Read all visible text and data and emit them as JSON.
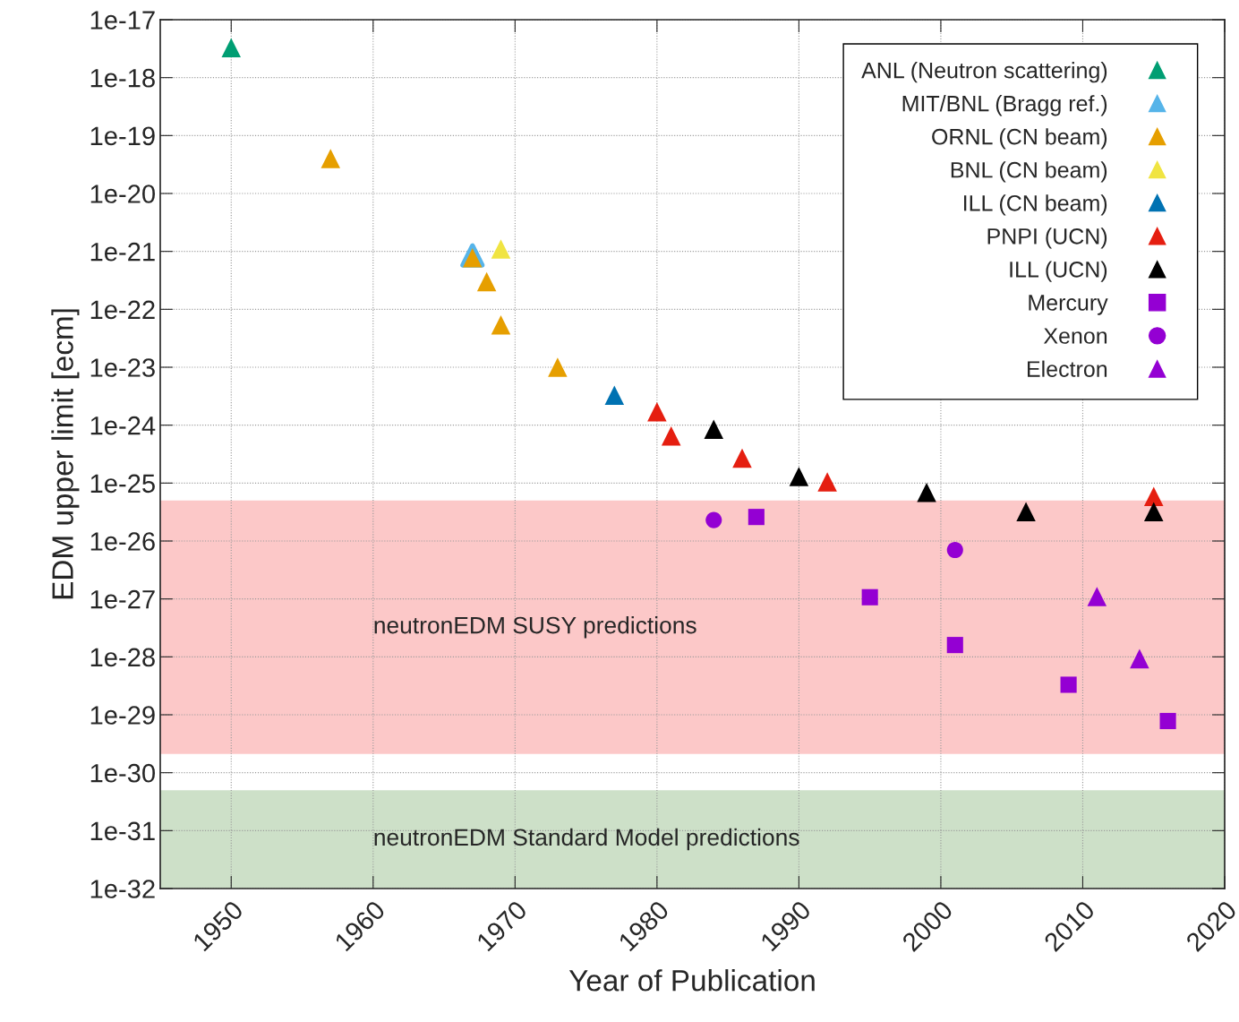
{
  "chart_data": {
    "type": "scatter",
    "xlabel": "Year of Publication",
    "ylabel": "EDM upper limit [ecm]",
    "log": "y",
    "grid": true,
    "legend": "top right",
    "xlim": [
      1945,
      2020
    ],
    "xticks": [
      1950,
      1960,
      1970,
      1980,
      1990,
      2000,
      2010,
      2020
    ],
    "ylim": [
      1e-32,
      1e-17
    ],
    "yticks": [
      {
        "value": 1e-32,
        "label": "1e-32"
      },
      {
        "value": 1e-31,
        "label": "1e-31"
      },
      {
        "value": 1e-30,
        "label": "1e-30"
      },
      {
        "value": 1e-29,
        "label": "1e-29"
      },
      {
        "value": 1e-28,
        "label": "1e-28"
      },
      {
        "value": 1e-27,
        "label": "1e-27"
      },
      {
        "value": 1e-26,
        "label": "1e-26"
      },
      {
        "value": 1e-25,
        "label": "1e-25"
      },
      {
        "value": 1e-24,
        "label": "1e-24"
      },
      {
        "value": 1e-23,
        "label": "1e-23"
      },
      {
        "value": 1e-22,
        "label": "1e-22"
      },
      {
        "value": 1e-21,
        "label": "1e-21"
      },
      {
        "value": 1e-20,
        "label": "1e-20"
      },
      {
        "value": 1e-19,
        "label": "1e-19"
      },
      {
        "value": 1e-18,
        "label": "1e-18"
      },
      {
        "value": 1e-17,
        "label": "1e-17"
      }
    ],
    "bands": [
      {
        "axis": "y",
        "from": 2.1e-30,
        "to": 5e-26,
        "label": "neutronEDM SUSY predictions",
        "color": "#fcc8c8"
      },
      {
        "axis": "y",
        "from": 1e-32,
        "to": 5e-31,
        "label": "neutronEDM Standard Model predictions",
        "color": "#cde0c8"
      }
    ],
    "series": [
      {
        "name": "ANL (Neutron scattering)",
        "color": "#009e73",
        "marker": "triangle",
        "x": [
          1950
        ],
        "values": [
          3.3e-18
        ]
      },
      {
        "name": "MIT/BNL (Bragg ref.)",
        "color": "#56b4e9",
        "marker": "triangle",
        "x": [
          1967
        ],
        "values": [
          8.5e-22
        ]
      },
      {
        "name": "ORNL (CN beam)",
        "color": "#e69f00",
        "marker": "triangle",
        "x": [
          1957,
          1967,
          1968,
          1969,
          1973
        ],
        "values": [
          4e-20,
          7.8e-22,
          3e-22,
          5.4e-23,
          1e-23
        ]
      },
      {
        "name": "BNL (CN beam)",
        "color": "#f0e442",
        "marker": "triangle",
        "x": [
          1969
        ],
        "values": [
          1.1e-21
        ]
      },
      {
        "name": "ILL (CN beam)",
        "color": "#0072b2",
        "marker": "triangle",
        "x": [
          1977
        ],
        "values": [
          3.3e-24
        ]
      },
      {
        "name": "PNPI (UCN)",
        "color": "#e51e10",
        "marker": "triangle",
        "x": [
          1980,
          1981,
          1986,
          1992,
          2015
        ],
        "values": [
          1.7e-24,
          6.5e-25,
          2.7e-25,
          1.05e-25,
          5.9e-26
        ]
      },
      {
        "name": "ILL (UCN)",
        "color": "#000000",
        "marker": "triangle",
        "x": [
          1984,
          1990,
          1999,
          2006,
          2015
        ],
        "values": [
          8.5e-25,
          1.3e-25,
          6.9e-26,
          3.2e-26,
          3.2e-26
        ]
      },
      {
        "name": "Mercury",
        "color": "#9400d3",
        "marker": "square",
        "x": [
          1987,
          1995,
          2001,
          2009,
          2016
        ],
        "values": [
          2.6e-26,
          1.07e-27,
          1.6e-28,
          3.3e-29,
          7.8e-30
        ]
      },
      {
        "name": "Xenon",
        "color": "#9400d3",
        "marker": "circle",
        "x": [
          1984,
          2001
        ],
        "values": [
          2.3e-26,
          7e-27
        ]
      },
      {
        "name": "Electron",
        "color": "#9400d3",
        "marker": "triangle",
        "x": [
          2011,
          2014
        ],
        "values": [
          1.1e-27,
          9.3e-29
        ]
      }
    ]
  }
}
